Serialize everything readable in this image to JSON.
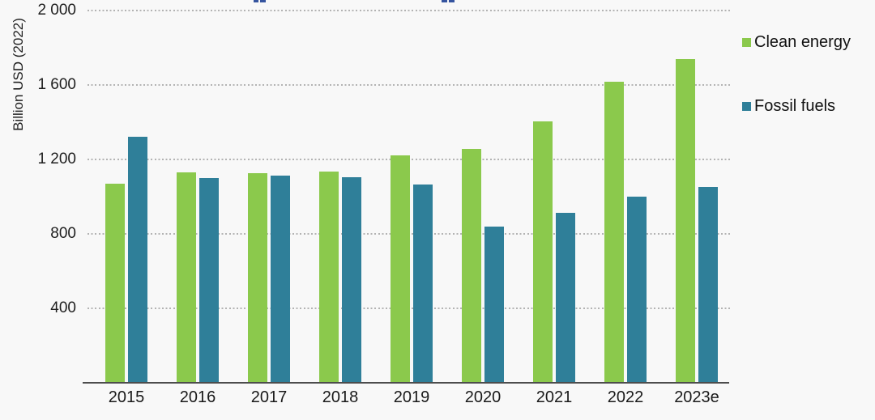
{
  "chart_data": {
    "type": "bar",
    "title": "",
    "ylabel": "Billion USD (2022)",
    "xlabel": "",
    "categories": [
      "2015",
      "2016",
      "2017",
      "2018",
      "2019",
      "2020",
      "2021",
      "2022",
      "2023e"
    ],
    "series": [
      {
        "name": "Clean energy",
        "color": "#8bc94c",
        "values": [
          1070,
          1130,
          1125,
          1135,
          1220,
          1255,
          1405,
          1615,
          1740
        ]
      },
      {
        "name": "Fossil fuels",
        "color": "#2f7f99",
        "values": [
          1320,
          1100,
          1110,
          1105,
          1065,
          840,
          910,
          1000,
          1050
        ]
      }
    ],
    "ylim": [
      0,
      2000
    ],
    "yticks": [
      400,
      800,
      1200,
      1600,
      2000
    ],
    "ytick_labels": [
      "400",
      "800",
      "1 200",
      "1 600",
      "2 000"
    ],
    "grid": "horizontal-dotted",
    "legend_position": "top-right"
  },
  "legend": {
    "items": [
      {
        "label": "Clean energy",
        "color": "#8bc94c"
      },
      {
        "label": "Fossil fuels",
        "color": "#2f7f99"
      }
    ]
  },
  "colors": {
    "background": "#f8f8f8",
    "axis_line": "#4d4d4d",
    "gridline": "#b3b3b3",
    "text": "#1a1a1a",
    "cropped_fragment_blue": "#35549f"
  }
}
